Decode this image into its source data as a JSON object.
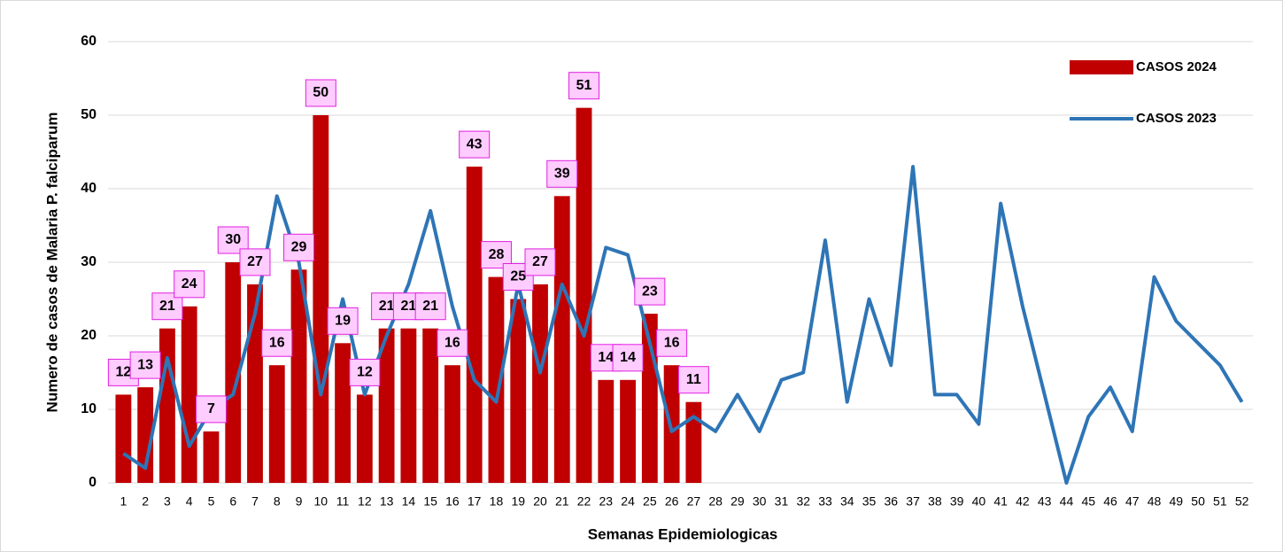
{
  "chart_data": {
    "type": "bar_line",
    "xlabel": "Semanas Epidemiologicas",
    "ylabel": "Numero de casos de Malaria P. falciparum",
    "categories": [
      1,
      2,
      3,
      4,
      5,
      6,
      7,
      8,
      9,
      10,
      11,
      12,
      13,
      14,
      15,
      16,
      17,
      18,
      19,
      20,
      21,
      22,
      23,
      24,
      25,
      26,
      27,
      28,
      29,
      30,
      31,
      32,
      33,
      34,
      35,
      36,
      37,
      38,
      39,
      40,
      41,
      42,
      43,
      44,
      45,
      46,
      47,
      48,
      49,
      50,
      51,
      52
    ],
    "series": [
      {
        "name": "CASOS 2024",
        "type": "bar",
        "color": "#c00000",
        "values": [
          12,
          13,
          21,
          24,
          7,
          30,
          27,
          16,
          29,
          50,
          19,
          12,
          21,
          21,
          21,
          16,
          43,
          28,
          25,
          27,
          39,
          51,
          14,
          14,
          23,
          16,
          11,
          null,
          null,
          null,
          null,
          null,
          null,
          null,
          null,
          null,
          null,
          null,
          null,
          null,
          null,
          null,
          null,
          null,
          null,
          null,
          null,
          null,
          null,
          null,
          null,
          null
        ]
      },
      {
        "name": "CASOS 2023",
        "type": "line",
        "color": "#2e75b6",
        "values": [
          4,
          2,
          17,
          5,
          10,
          12,
          23,
          39,
          30,
          12,
          25,
          12,
          20,
          27,
          37,
          24,
          14,
          11,
          27,
          15,
          27,
          20,
          32,
          31,
          19,
          7,
          9,
          7,
          12,
          7,
          14,
          15,
          33,
          11,
          25,
          16,
          43,
          12,
          12,
          8,
          38,
          24,
          12,
          0,
          9,
          13,
          7,
          28,
          22,
          19,
          16,
          11
        ]
      }
    ],
    "ylim": [
      0,
      60
    ],
    "yticks": [
      0,
      10,
      20,
      30,
      40,
      50,
      60
    ],
    "grid": true,
    "legend": "upper right"
  }
}
